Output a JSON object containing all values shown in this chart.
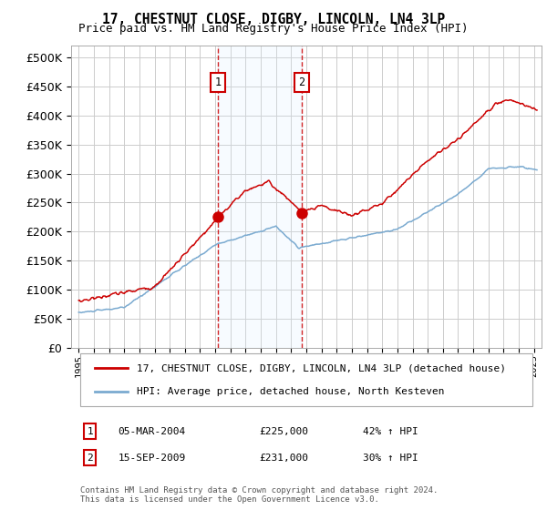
{
  "title": "17, CHESTNUT CLOSE, DIGBY, LINCOLN, LN4 3LP",
  "subtitle": "Price paid vs. HM Land Registry's House Price Index (HPI)",
  "legend_line1": "17, CHESTNUT CLOSE, DIGBY, LINCOLN, LN4 3LP (detached house)",
  "legend_line2": "HPI: Average price, detached house, North Kesteven",
  "table": [
    {
      "num": "1",
      "date": "05-MAR-2004",
      "price": "£225,000",
      "hpi": "42% ↑ HPI"
    },
    {
      "num": "2",
      "date": "15-SEP-2009",
      "price": "£231,000",
      "hpi": "30% ↑ HPI"
    }
  ],
  "footnote": "Contains HM Land Registry data © Crown copyright and database right 2024.\nThis data is licensed under the Open Government Licence v3.0.",
  "sale1_date_num": 2004.17,
  "sale1_price": 225000,
  "sale2_date_num": 2009.71,
  "sale2_price": 231000,
  "shade_color": "#ddeeff",
  "red_line_color": "#cc0000",
  "blue_line_color": "#7aaad0",
  "ylim_min": 0,
  "ylim_max": 520000,
  "xlim_min": 1994.5,
  "xlim_max": 2025.5,
  "background_color": "#ffffff",
  "grid_color": "#cccccc"
}
